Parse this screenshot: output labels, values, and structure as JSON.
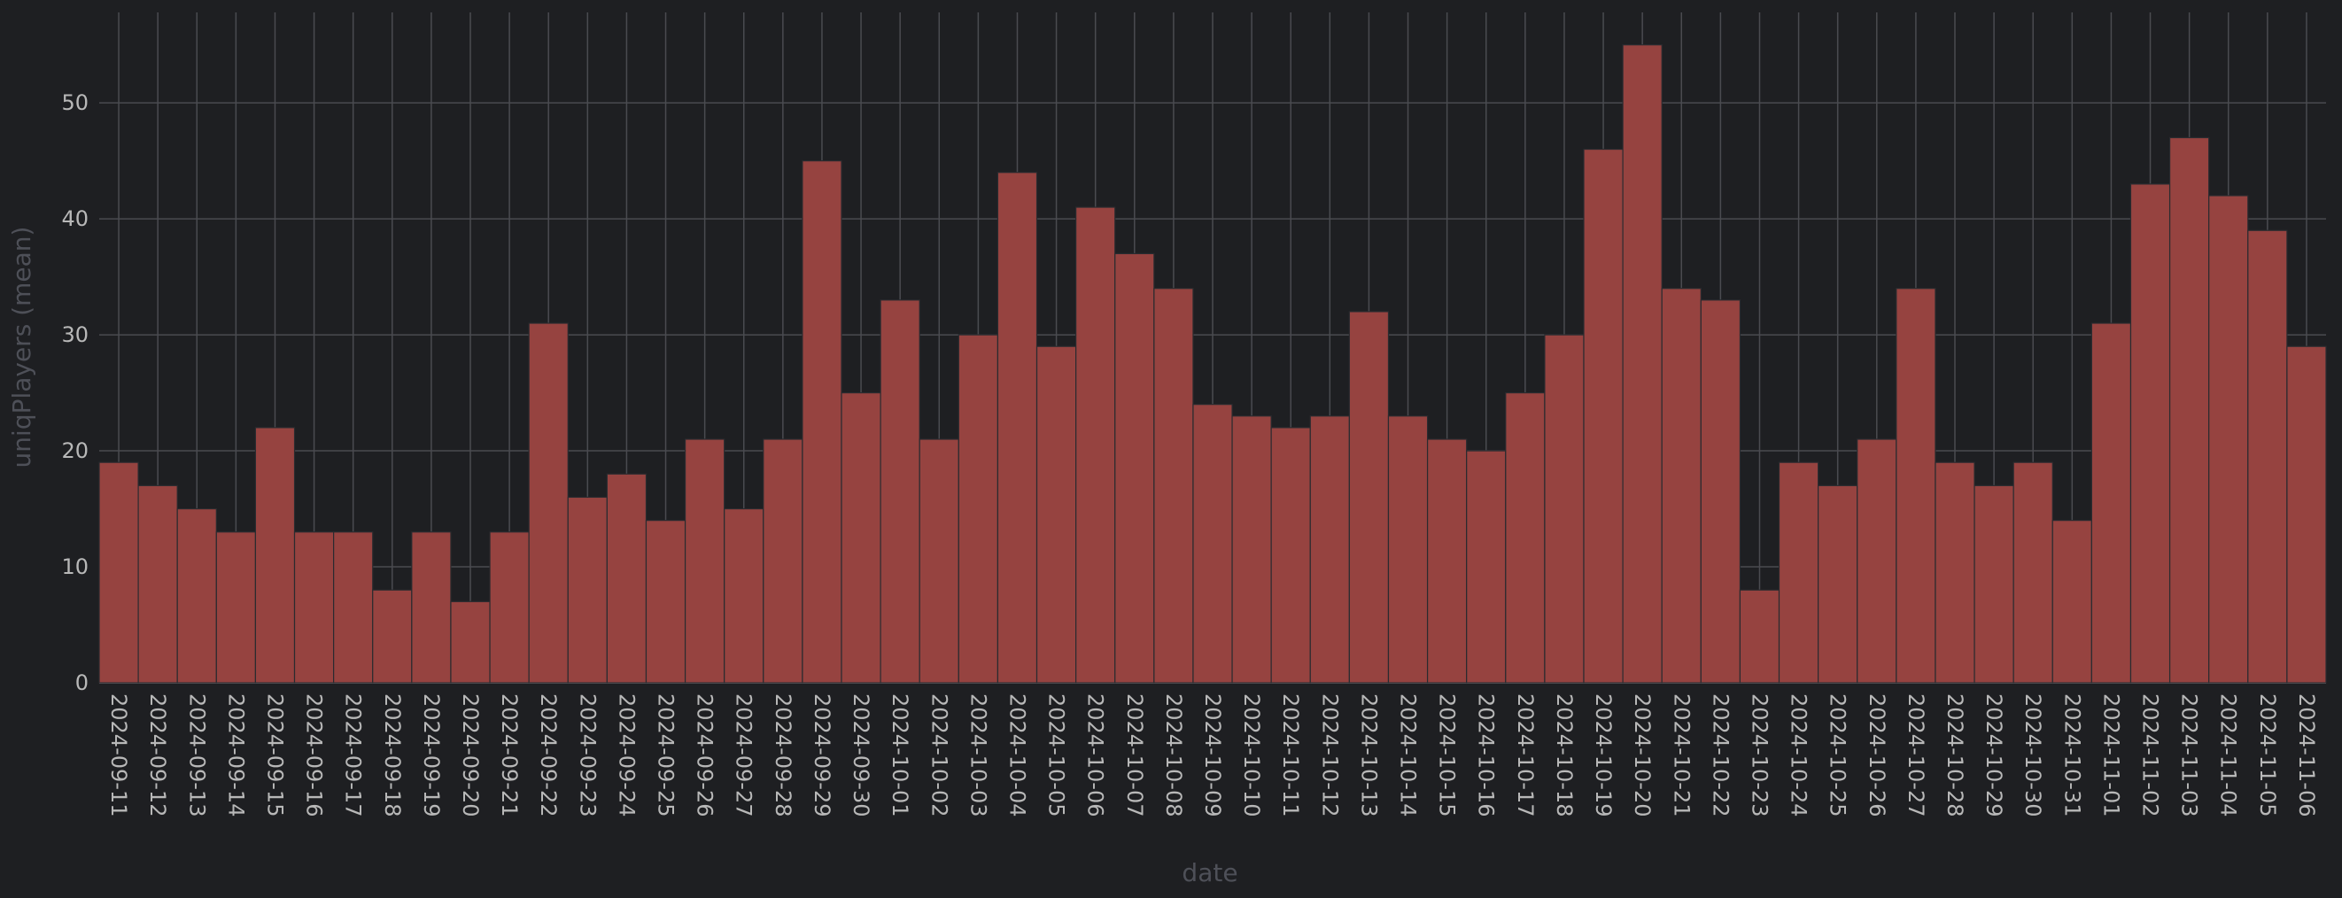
{
  "chart_data": {
    "type": "bar",
    "xlabel": "date",
    "ylabel": "uniqPlayers (mean)",
    "ylim": [
      0,
      57.8
    ],
    "yticks": [
      0,
      10,
      20,
      30,
      40,
      50
    ],
    "grid": true,
    "categories": [
      "2024-09-11",
      "2024-09-12",
      "2024-09-13",
      "2024-09-14",
      "2024-09-15",
      "2024-09-16",
      "2024-09-17",
      "2024-09-18",
      "2024-09-19",
      "2024-09-20",
      "2024-09-21",
      "2024-09-22",
      "2024-09-23",
      "2024-09-24",
      "2024-09-25",
      "2024-09-26",
      "2024-09-27",
      "2024-09-28",
      "2024-09-29",
      "2024-09-30",
      "2024-10-01",
      "2024-10-02",
      "2024-10-03",
      "2024-10-04",
      "2024-10-05",
      "2024-10-06",
      "2024-10-07",
      "2024-10-08",
      "2024-10-09",
      "2024-10-10",
      "2024-10-11",
      "2024-10-12",
      "2024-10-13",
      "2024-10-14",
      "2024-10-15",
      "2024-10-16",
      "2024-10-17",
      "2024-10-18",
      "2024-10-19",
      "2024-10-20",
      "2024-10-21",
      "2024-10-22",
      "2024-10-23",
      "2024-10-24",
      "2024-10-25",
      "2024-10-26",
      "2024-10-27",
      "2024-10-28",
      "2024-10-29",
      "2024-10-30",
      "2024-10-31",
      "2024-11-01",
      "2024-11-02",
      "2024-11-03",
      "2024-11-04",
      "2024-11-05",
      "2024-11-06"
    ],
    "values": [
      19,
      17,
      15,
      13,
      22,
      13,
      13,
      8,
      13,
      7,
      13,
      31,
      16,
      18,
      14,
      21,
      15,
      21,
      45,
      25,
      33,
      21,
      30,
      44,
      29,
      41,
      37,
      34,
      24,
      23,
      22,
      23,
      32,
      23,
      21,
      20,
      25,
      30,
      46,
      55,
      34,
      33,
      8,
      19,
      17,
      21,
      34,
      19,
      17,
      19,
      14,
      31,
      43,
      47,
      42,
      39,
      29
    ],
    "colors": {
      "bar": "#964340",
      "bar_edge": "#2a2b2f",
      "grid": "#4a4b50",
      "background": "#1e1f22"
    }
  }
}
